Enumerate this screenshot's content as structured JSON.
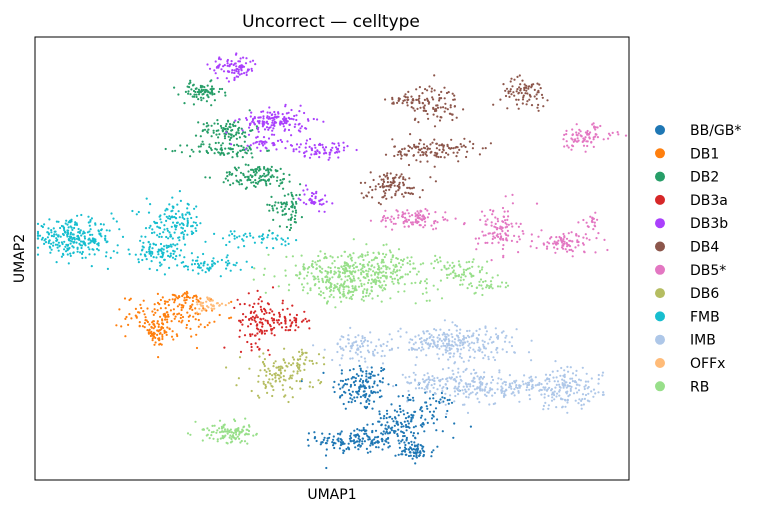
{
  "chart_data": {
    "type": "scatter",
    "title": "Uncorrect — celltype",
    "xlabel": "UMAP1",
    "ylabel": "UMAP2",
    "xlim": [
      0,
      100
    ],
    "ylim": [
      0,
      100
    ],
    "xticks": false,
    "yticks": false,
    "grid": false,
    "legend_position": "right",
    "series": [
      {
        "name": "BB/GB*",
        "color": "#1f77b4",
        "clusters": [
          {
            "x": 55,
            "y": 21,
            "sx": 2.5,
            "sy": 2.8,
            "n": 140
          },
          {
            "x": 54,
            "y": 9,
            "sx": 3.2,
            "sy": 1.5,
            "n": 150
          },
          {
            "x": 61,
            "y": 12,
            "sx": 2.0,
            "sy": 2.0,
            "n": 80
          },
          {
            "x": 65,
            "y": 15,
            "sx": 3.0,
            "sy": 2.6,
            "n": 90
          },
          {
            "x": 64,
            "y": 6.5,
            "sx": 1.6,
            "sy": 1.0,
            "n": 70
          }
        ]
      },
      {
        "name": "DB1",
        "color": "#ff7f0e",
        "clusters": [
          {
            "x": 22.5,
            "y": 37,
            "sx": 3.5,
            "sy": 2.4,
            "n": 160
          },
          {
            "x": 20.5,
            "y": 33,
            "sx": 1.2,
            "sy": 1.5,
            "n": 50
          },
          {
            "x": 25,
            "y": 41.5,
            "sx": 1.5,
            "sy": 0.6,
            "n": 30
          }
        ]
      },
      {
        "name": "DB2",
        "color": "#279e68",
        "clusters": [
          {
            "x": 28,
            "y": 87.5,
            "sx": 1.8,
            "sy": 1.1,
            "n": 80
          },
          {
            "x": 32.5,
            "y": 79,
            "sx": 2.2,
            "sy": 1.3,
            "n": 90
          },
          {
            "x": 32,
            "y": 74.5,
            "sx": 3.2,
            "sy": 0.9,
            "n": 80
          },
          {
            "x": 37.5,
            "y": 68.5,
            "sx": 3.3,
            "sy": 1.3,
            "n": 120
          },
          {
            "x": 42.5,
            "y": 62,
            "sx": 1.5,
            "sy": 2.4,
            "n": 70
          }
        ]
      },
      {
        "name": "DB3a",
        "color": "#d62728",
        "clusters": [
          {
            "x": 38,
            "y": 36,
            "sx": 1.9,
            "sy": 2.9,
            "n": 120
          },
          {
            "x": 43,
            "y": 36,
            "sx": 1.4,
            "sy": 1.4,
            "n": 40
          }
        ]
      },
      {
        "name": "DB3b",
        "color": "#aa40fc",
        "clusters": [
          {
            "x": 33.5,
            "y": 93,
            "sx": 2.0,
            "sy": 1.3,
            "n": 90
          },
          {
            "x": 40.5,
            "y": 81,
            "sx": 2.8,
            "sy": 1.4,
            "n": 150
          },
          {
            "x": 48,
            "y": 74.5,
            "sx": 2.4,
            "sy": 0.9,
            "n": 70
          },
          {
            "x": 39,
            "y": 76,
            "sx": 2.0,
            "sy": 0.8,
            "n": 40
          },
          {
            "x": 47,
            "y": 63.5,
            "sx": 1.2,
            "sy": 1.2,
            "n": 40
          }
        ]
      },
      {
        "name": "DB4",
        "color": "#8c564b",
        "clusters": [
          {
            "x": 67,
            "y": 85,
            "sx": 2.3,
            "sy": 2.2,
            "n": 90
          },
          {
            "x": 62,
            "y": 85.5,
            "sx": 1.5,
            "sy": 0.8,
            "n": 30
          },
          {
            "x": 67,
            "y": 74.5,
            "sx": 3.4,
            "sy": 1.3,
            "n": 120
          },
          {
            "x": 60,
            "y": 66.5,
            "sx": 2.7,
            "sy": 1.6,
            "n": 100
          },
          {
            "x": 82.5,
            "y": 87.5,
            "sx": 2.0,
            "sy": 1.6,
            "n": 80
          }
        ]
      },
      {
        "name": "DB5*",
        "color": "#e377c2",
        "clusters": [
          {
            "x": 64,
            "y": 59,
            "sx": 3.2,
            "sy": 1.2,
            "n": 100
          },
          {
            "x": 78,
            "y": 56.5,
            "sx": 1.8,
            "sy": 2.7,
            "n": 100
          },
          {
            "x": 89.5,
            "y": 53.5,
            "sx": 2.7,
            "sy": 1.2,
            "n": 90
          },
          {
            "x": 92.5,
            "y": 77.5,
            "sx": 2.5,
            "sy": 1.4,
            "n": 80
          },
          {
            "x": 93.5,
            "y": 58.5,
            "sx": 0.8,
            "sy": 0.9,
            "n": 20
          }
        ]
      },
      {
        "name": "DB6",
        "color": "#b5bd61",
        "clusters": [
          {
            "x": 41,
            "y": 23.5,
            "sx": 3.2,
            "sy": 2.4,
            "n": 110
          },
          {
            "x": 45,
            "y": 27,
            "sx": 1.5,
            "sy": 1.2,
            "n": 30
          }
        ]
      },
      {
        "name": "FMB",
        "color": "#17becf",
        "clusters": [
          {
            "x": 6.5,
            "y": 54.5,
            "sx": 3.5,
            "sy": 2.0,
            "n": 260
          },
          {
            "x": 23.5,
            "y": 57.5,
            "sx": 2.4,
            "sy": 2.6,
            "n": 140
          },
          {
            "x": 20,
            "y": 51.5,
            "sx": 2.7,
            "sy": 1.2,
            "n": 80
          },
          {
            "x": 29,
            "y": 48.5,
            "sx": 2.9,
            "sy": 0.9,
            "n": 70
          },
          {
            "x": 37,
            "y": 54.5,
            "sx": 3.0,
            "sy": 0.9,
            "n": 50
          }
        ]
      },
      {
        "name": "IMB",
        "color": "#aec7e8",
        "clusters": [
          {
            "x": 70.5,
            "y": 31,
            "sx": 5.0,
            "sy": 1.9,
            "n": 260
          },
          {
            "x": 73.5,
            "y": 21,
            "sx": 3.0,
            "sy": 2.2,
            "n": 150
          },
          {
            "x": 89.5,
            "y": 20.5,
            "sx": 3.0,
            "sy": 2.3,
            "n": 160
          },
          {
            "x": 81.5,
            "y": 21,
            "sx": 2.5,
            "sy": 1.1,
            "n": 70
          },
          {
            "x": 54.5,
            "y": 30,
            "sx": 2.5,
            "sy": 1.6,
            "n": 80
          },
          {
            "x": 65.5,
            "y": 22,
            "sx": 2.0,
            "sy": 1.2,
            "n": 50
          }
        ]
      },
      {
        "name": "OFFx",
        "color": "#ffbb78",
        "clusters": [
          {
            "x": 29.5,
            "y": 39.5,
            "sx": 1.3,
            "sy": 0.9,
            "n": 40
          }
        ]
      },
      {
        "name": "RB",
        "color": "#98df8a",
        "clusters": [
          {
            "x": 54.5,
            "y": 47,
            "sx": 6.0,
            "sy": 2.4,
            "n": 420
          },
          {
            "x": 51.5,
            "y": 42.5,
            "sx": 2.2,
            "sy": 1.3,
            "n": 70
          },
          {
            "x": 72,
            "y": 47,
            "sx": 2.4,
            "sy": 1.7,
            "n": 70
          },
          {
            "x": 75.5,
            "y": 44,
            "sx": 1.8,
            "sy": 0.8,
            "n": 30
          },
          {
            "x": 32,
            "y": 10.5,
            "sx": 2.0,
            "sy": 1.3,
            "n": 90
          },
          {
            "x": 35.5,
            "y": 11,
            "sx": 1.0,
            "sy": 1.0,
            "n": 20
          }
        ]
      }
    ]
  }
}
